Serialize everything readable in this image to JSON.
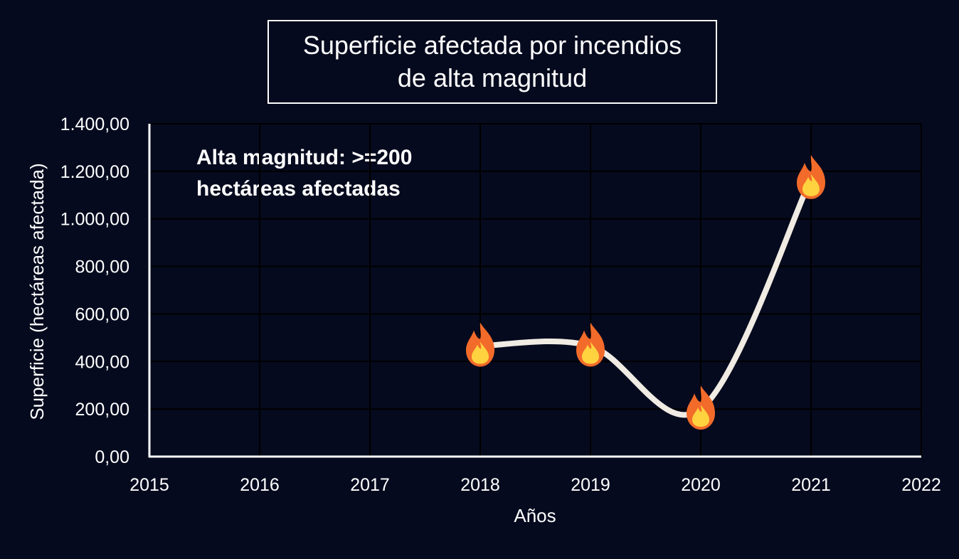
{
  "chart_data": {
    "type": "line",
    "title": [
      "Superficie afectada por incendios",
      "de alta magnitud"
    ],
    "annotation": [
      "Alta magnitud: >=200",
      "hectáreas afectadas"
    ],
    "xlabel": "Años",
    "ylabel": "Superficie (hectáreas afectada)",
    "x_ticks": [
      "2015",
      "2016",
      "2017",
      "2018",
      "2019",
      "2020",
      "2021",
      "2022"
    ],
    "y_ticks": [
      "0,00",
      "200,00",
      "400,00",
      "600,00",
      "800,00",
      "1.000,00",
      "1.200,00",
      "1.400,00"
    ],
    "xlim": [
      2015,
      2022
    ],
    "ylim": [
      0,
      1400
    ],
    "grid": true,
    "marker_icon": "fire-icon",
    "series": [
      {
        "x": [
          2018,
          2019,
          2020,
          2021
        ],
        "y": [
          465,
          465,
          200,
          1170
        ]
      }
    ]
  },
  "colors": {
    "background": "#050a1e",
    "line": "#f0ebe3",
    "grid": "#000000",
    "axis": "#ffffff",
    "text": "#ffffff",
    "flame_outer": "#f26b2a",
    "flame_inner": "#ffd23f"
  }
}
